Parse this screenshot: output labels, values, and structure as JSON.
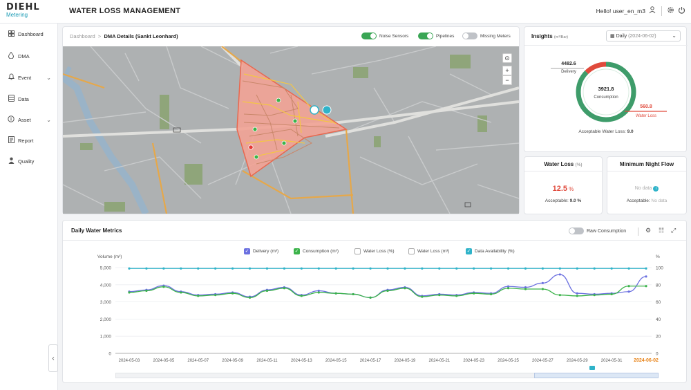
{
  "brand": {
    "line1": "DIEHL",
    "line2": "Metering"
  },
  "header": {
    "title": "WATER LOSS MANAGEMENT",
    "user": "Hello! user_en_m3"
  },
  "sidebar": {
    "items": [
      {
        "label": "Dashboard",
        "icon": "grid-icon"
      },
      {
        "label": "DMA",
        "icon": "drop-icon"
      },
      {
        "label": "Event",
        "icon": "bell-icon"
      },
      {
        "label": "Data",
        "icon": "database-icon"
      },
      {
        "label": "Asset",
        "icon": "info-icon"
      },
      {
        "label": "Report",
        "icon": "report-icon"
      },
      {
        "label": "Quality",
        "icon": "person-icon"
      }
    ]
  },
  "map_card": {
    "breadcrumb_root": "Dashboard",
    "breadcrumb_current": "DMA Details (Sankt Leonhard)",
    "toggles": [
      {
        "label": "Noise Sensors",
        "on": true
      },
      {
        "label": "Pipelines",
        "on": true
      },
      {
        "label": "Missing Meters",
        "on": false
      }
    ]
  },
  "insights": {
    "title": "Insights",
    "unit": "(m³/Bar)",
    "date_select": "Daily",
    "date_value": "(2024-06-02)",
    "delivery_value": "4482.6",
    "delivery_label": "Delivery",
    "consumption_value": "3921.8",
    "consumption_label": "Consumption",
    "waterloss_value": "560.8",
    "waterloss_label": "Water Loss",
    "acceptable_label": "Acceptable Water Loss:",
    "acceptable_value": "9.0",
    "consumption_share": 0.875
  },
  "water_loss_card": {
    "title": "Water Loss",
    "unit": "(%)",
    "value": "12.5",
    "value_unit": "%",
    "acceptable_label": "Acceptable:",
    "acceptable_value": "9.0 %"
  },
  "night_flow_card": {
    "title": "Minimum Night Flow",
    "value": "No data",
    "acceptable_label": "Acceptable:",
    "acceptable_value": "No data"
  },
  "metrics_card": {
    "title": "Daily Water Metrics",
    "raw_toggle": "Raw Consumption"
  },
  "colors": {
    "delivery": "#6b70e0",
    "consumption": "#3bb34a",
    "availability": "#2fb3c9",
    "loss": "#e04a3c",
    "accent_date": "#e8841a"
  },
  "chart_data": {
    "type": "line",
    "y_label": "Volume (m³)",
    "y2_label": "%",
    "ylim": [
      0,
      5000
    ],
    "y2lim": [
      0,
      100
    ],
    "y_ticks": [
      "0",
      "1,000",
      "2,000",
      "3,000",
      "4,000",
      "5,000"
    ],
    "y2_ticks": [
      "0",
      "20",
      "40",
      "60",
      "80",
      "100"
    ],
    "legend": [
      {
        "label": "Delivery (m³)",
        "checked": true
      },
      {
        "label": "Consumption (m³)",
        "checked": true
      },
      {
        "label": "Water Loss (%)",
        "checked": false
      },
      {
        "label": "Water Loss (m³)",
        "checked": false
      },
      {
        "label": "Data Availability (%)",
        "checked": true
      }
    ],
    "x_tick_labels": [
      "2024-05-03",
      "2024-05-05",
      "2024-05-07",
      "2024-05-09",
      "2024-05-11",
      "2024-05-13",
      "2024-05-15",
      "2024-05-17",
      "2024-05-19",
      "2024-05-21",
      "2024-05-23",
      "2024-05-25",
      "2024-05-27",
      "2024-05-29",
      "2024-05-31",
      "2024-06-02"
    ],
    "x": [
      "2024-05-03",
      "2024-05-04",
      "2024-05-05",
      "2024-05-06",
      "2024-05-07",
      "2024-05-08",
      "2024-05-09",
      "2024-05-10",
      "2024-05-11",
      "2024-05-12",
      "2024-05-13",
      "2024-05-14",
      "2024-05-15",
      "2024-05-16",
      "2024-05-17",
      "2024-05-18",
      "2024-05-19",
      "2024-05-20",
      "2024-05-21",
      "2024-05-22",
      "2024-05-23",
      "2024-05-24",
      "2024-05-25",
      "2024-05-26",
      "2024-05-27",
      "2024-05-28",
      "2024-05-29",
      "2024-05-30",
      "2024-05-31",
      "2024-06-01",
      "2024-06-02"
    ],
    "series": [
      {
        "name": "Delivery (m³)",
        "axis": "left",
        "values": [
          3600,
          3700,
          3950,
          3600,
          3400,
          3450,
          3550,
          3300,
          3700,
          3850,
          3400,
          3650,
          3500,
          3450,
          3250,
          3700,
          3850,
          3350,
          3450,
          3400,
          3550,
          3500,
          3900,
          3850,
          4100,
          4600,
          3500,
          3450,
          3500,
          3600,
          4480
        ]
      },
      {
        "name": "Consumption (m³)",
        "axis": "left",
        "values": [
          3550,
          3650,
          3880,
          3550,
          3350,
          3400,
          3500,
          3250,
          3650,
          3800,
          3350,
          3550,
          3500,
          3450,
          3250,
          3650,
          3800,
          3300,
          3400,
          3350,
          3500,
          3450,
          3800,
          3750,
          3750,
          3400,
          3350,
          3400,
          3450,
          3920,
          3920
        ]
      },
      {
        "name": "Data Availability (%)",
        "axis": "right",
        "values": [
          99,
          99,
          99,
          99,
          99,
          99,
          99,
          99,
          99,
          99,
          99,
          99,
          99,
          99,
          99,
          99,
          99,
          99,
          99,
          99,
          99,
          99,
          99,
          99,
          99,
          99,
          99,
          99,
          99,
          99,
          99
        ]
      }
    ]
  }
}
